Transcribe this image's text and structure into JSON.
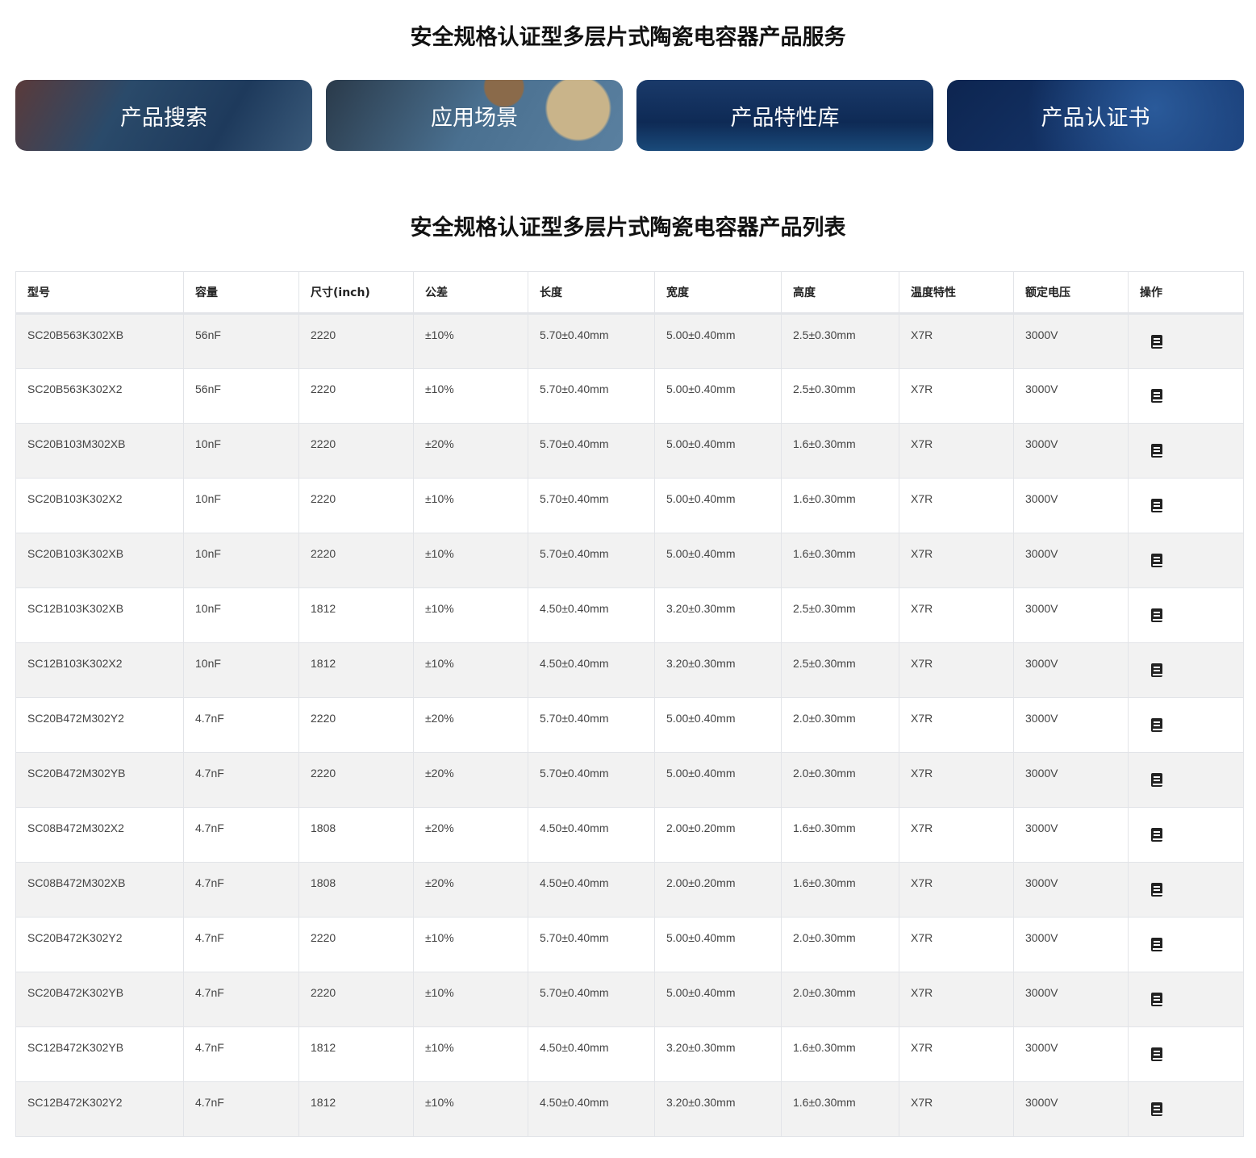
{
  "service_title": "安全规格认证型多层片式陶瓷电容器产品服务",
  "cards": [
    "产品搜索",
    "应用场景",
    "产品特性库",
    "产品认证书"
  ],
  "list_title": "安全规格认证型多层片式陶瓷电容器产品列表",
  "columns": [
    "型号",
    "容量",
    "尺寸(inch)",
    "公差",
    "长度",
    "宽度",
    "高度",
    "温度特性",
    "额定电压",
    "操作"
  ],
  "action_icon": "datasheet-book-icon",
  "rows": [
    [
      "SC20B563K302XB",
      "56nF",
      "2220",
      "±10%",
      "5.70±0.40mm",
      "5.00±0.40mm",
      "2.5±0.30mm",
      "X7R",
      "3000V"
    ],
    [
      "SC20B563K302X2",
      "56nF",
      "2220",
      "±10%",
      "5.70±0.40mm",
      "5.00±0.40mm",
      "2.5±0.30mm",
      "X7R",
      "3000V"
    ],
    [
      "SC20B103M302XB",
      "10nF",
      "2220",
      "±20%",
      "5.70±0.40mm",
      "5.00±0.40mm",
      "1.6±0.30mm",
      "X7R",
      "3000V"
    ],
    [
      "SC20B103K302X2",
      "10nF",
      "2220",
      "±10%",
      "5.70±0.40mm",
      "5.00±0.40mm",
      "1.6±0.30mm",
      "X7R",
      "3000V"
    ],
    [
      "SC20B103K302XB",
      "10nF",
      "2220",
      "±10%",
      "5.70±0.40mm",
      "5.00±0.40mm",
      "1.6±0.30mm",
      "X7R",
      "3000V"
    ],
    [
      "SC12B103K302XB",
      "10nF",
      "1812",
      "±10%",
      "4.50±0.40mm",
      "3.20±0.30mm",
      "2.5±0.30mm",
      "X7R",
      "3000V"
    ],
    [
      "SC12B103K302X2",
      "10nF",
      "1812",
      "±10%",
      "4.50±0.40mm",
      "3.20±0.30mm",
      "2.5±0.30mm",
      "X7R",
      "3000V"
    ],
    [
      "SC20B472M302Y2",
      "4.7nF",
      "2220",
      "±20%",
      "5.70±0.40mm",
      "5.00±0.40mm",
      "2.0±0.30mm",
      "X7R",
      "3000V"
    ],
    [
      "SC20B472M302YB",
      "4.7nF",
      "2220",
      "±20%",
      "5.70±0.40mm",
      "5.00±0.40mm",
      "2.0±0.30mm",
      "X7R",
      "3000V"
    ],
    [
      "SC08B472M302X2",
      "4.7nF",
      "1808",
      "±20%",
      "4.50±0.40mm",
      "2.00±0.20mm",
      "1.6±0.30mm",
      "X7R",
      "3000V"
    ],
    [
      "SC08B472M302XB",
      "4.7nF",
      "1808",
      "±20%",
      "4.50±0.40mm",
      "2.00±0.20mm",
      "1.6±0.30mm",
      "X7R",
      "3000V"
    ],
    [
      "SC20B472K302Y2",
      "4.7nF",
      "2220",
      "±10%",
      "5.70±0.40mm",
      "5.00±0.40mm",
      "2.0±0.30mm",
      "X7R",
      "3000V"
    ],
    [
      "SC20B472K302YB",
      "4.7nF",
      "2220",
      "±10%",
      "5.70±0.40mm",
      "5.00±0.40mm",
      "2.0±0.30mm",
      "X7R",
      "3000V"
    ],
    [
      "SC12B472K302YB",
      "4.7nF",
      "1812",
      "±10%",
      "4.50±0.40mm",
      "3.20±0.30mm",
      "1.6±0.30mm",
      "X7R",
      "3000V"
    ],
    [
      "SC12B472K302Y2",
      "4.7nF",
      "1812",
      "±10%",
      "4.50±0.40mm",
      "3.20±0.30mm",
      "1.6±0.30mm",
      "X7R",
      "3000V"
    ]
  ]
}
